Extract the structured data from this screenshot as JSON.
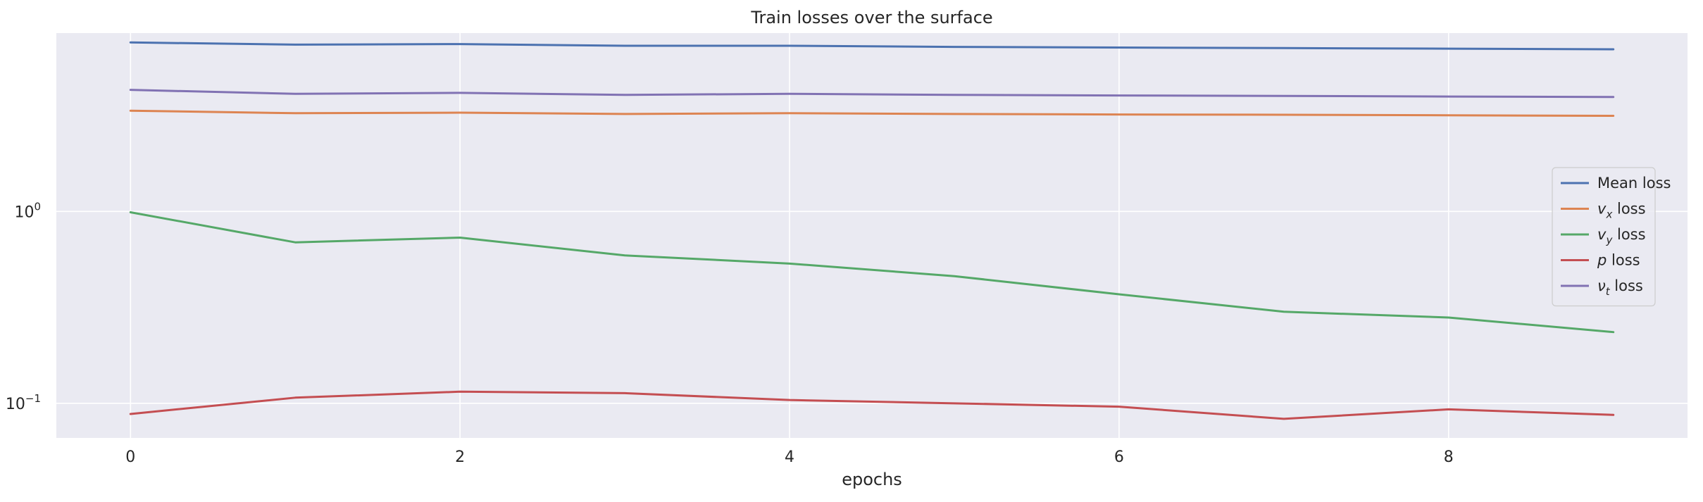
{
  "chart_data": {
    "type": "line",
    "title": "Train losses over the surface",
    "xlabel": "epochs",
    "ylabel": "",
    "xlim": [
      -0.45,
      9.45
    ],
    "ylim": [
      0.066,
      8.5
    ],
    "yscale": "log",
    "x_ticks": [
      0,
      2,
      4,
      6,
      8
    ],
    "y_ticks": [
      {
        "value": 1.0,
        "base": "10",
        "exp": "0"
      },
      {
        "value": 0.1,
        "base": "10",
        "exp": "−1"
      }
    ],
    "grid": true,
    "legend_position": "center-right",
    "x": [
      0,
      1,
      2,
      3,
      4,
      5,
      6,
      7,
      8,
      9
    ],
    "series": [
      {
        "name": "Mean loss",
        "legend_sym": "",
        "legend_sub": "",
        "legend_rest": "Mean loss",
        "color": "#4c72b0",
        "values": [
          7.6,
          7.4,
          7.45,
          7.3,
          7.3,
          7.2,
          7.15,
          7.1,
          7.05,
          7.0
        ]
      },
      {
        "name": "v_x loss",
        "legend_sym": "v",
        "legend_sub": "x",
        "legend_rest": " loss",
        "color": "#dd8452",
        "values": [
          3.35,
          3.25,
          3.27,
          3.22,
          3.25,
          3.22,
          3.2,
          3.19,
          3.17,
          3.15
        ]
      },
      {
        "name": "v_y loss",
        "legend_sym": "v",
        "legend_sub": "y",
        "legend_rest": " loss",
        "color": "#55a868",
        "values": [
          0.99,
          0.69,
          0.73,
          0.59,
          0.535,
          0.46,
          0.37,
          0.3,
          0.28,
          0.235
        ]
      },
      {
        "name": "p loss",
        "legend_sym": "p",
        "legend_sub": "",
        "legend_rest": " loss",
        "color": "#c44e52",
        "values": [
          0.088,
          0.107,
          0.115,
          0.113,
          0.104,
          0.1,
          0.096,
          0.083,
          0.093,
          0.087
        ]
      },
      {
        "name": "nu_t loss",
        "legend_sym": "ν",
        "legend_sub": "t",
        "legend_rest": " loss",
        "color": "#8172b3",
        "values": [
          4.3,
          4.1,
          4.15,
          4.05,
          4.1,
          4.05,
          4.02,
          4.0,
          3.97,
          3.95
        ]
      }
    ]
  },
  "colors": {
    "plot_background": "#eaeaf2",
    "grid": "#ffffff",
    "text": "#262626"
  }
}
